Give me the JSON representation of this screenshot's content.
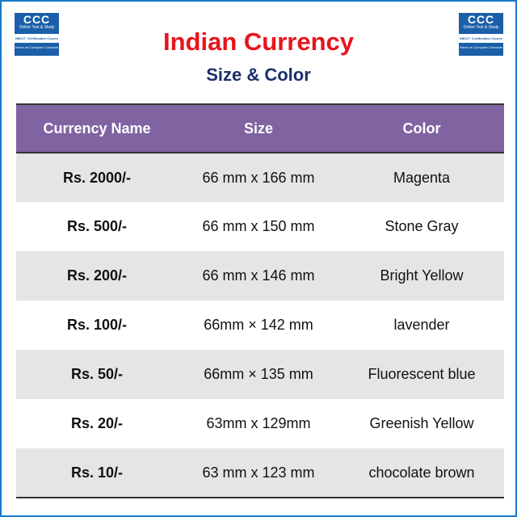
{
  "logo": {
    "title": "CCC",
    "subtitle": "Online Test & Study",
    "badge": "NIELIT",
    "badge_text": "Certification Course",
    "footer": "Notes on Computer Concepts"
  },
  "header": {
    "title": "Indian Currency",
    "subtitle": "Size & Color"
  },
  "table": {
    "columns": [
      "Currency Name",
      "Size",
      "Color"
    ],
    "rows": [
      [
        "Rs. 2000/-",
        "66 mm x 166 mm",
        "Magenta"
      ],
      [
        "Rs. 500/-",
        "66 mm x 150 mm",
        "Stone Gray"
      ],
      [
        "Rs. 200/-",
        "66 mm x 146 mm",
        "Bright Yellow"
      ],
      [
        "Rs. 100/-",
        "66mm × 142 mm",
        "lavender"
      ],
      [
        "Rs. 50/-",
        "66mm × 135 mm",
        "Fluorescent blue"
      ],
      [
        "Rs. 20/-",
        "63mm x 129mm",
        "Greenish Yellow"
      ],
      [
        "Rs. 10/-",
        "63 mm x 123 mm",
        "chocolate brown"
      ]
    ]
  },
  "colors": {
    "title": "#e8141c",
    "subtitle": "#1c2e6b",
    "header_bg": "#8064a2",
    "alt_row": "#e5e5e5",
    "border": "#1a78c8"
  }
}
